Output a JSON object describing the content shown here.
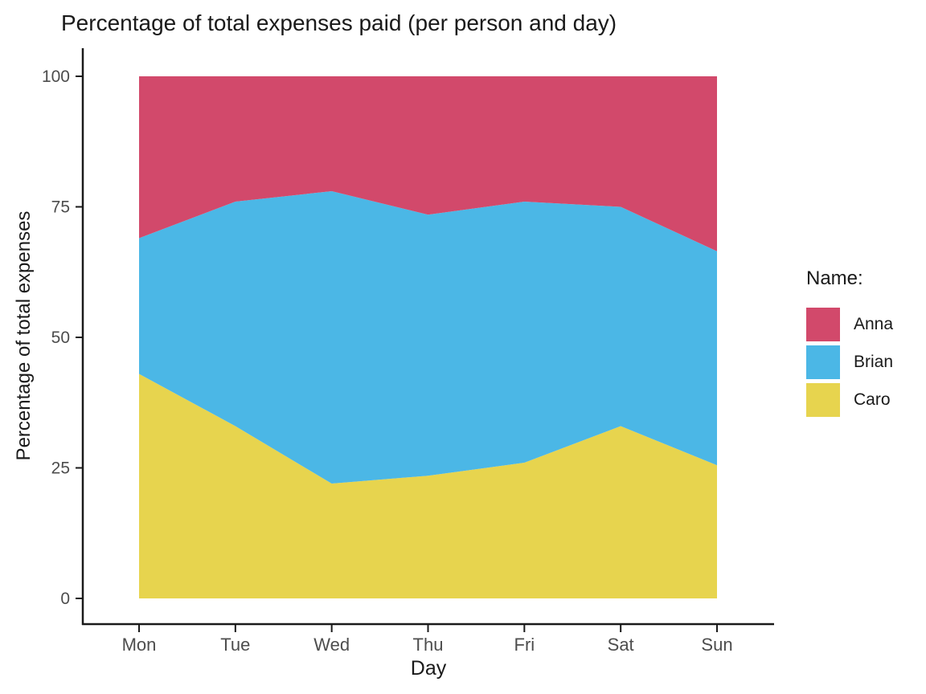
{
  "chart_data": {
    "type": "area",
    "stacked": true,
    "title": "Percentage of total expenses paid (per person and day)",
    "xlabel": "Day",
    "ylabel": "Percentage of total expenses",
    "legend_title": "Name:",
    "legend_position": "right",
    "categories": [
      "Mon",
      "Tue",
      "Wed",
      "Thu",
      "Fri",
      "Sat",
      "Sun"
    ],
    "y_ticks": [
      0,
      25,
      50,
      75,
      100
    ],
    "ylim": [
      0,
      100
    ],
    "series": [
      {
        "name": "Anna",
        "color": "#d2496b",
        "values": [
          31,
          24,
          22,
          26.5,
          24,
          25,
          33.5
        ]
      },
      {
        "name": "Brian",
        "color": "#4bb7e6",
        "values": [
          26,
          43,
          56,
          50,
          50,
          42,
          41
        ]
      },
      {
        "name": "Caro",
        "color": "#e7d44e",
        "values": [
          43,
          33,
          22,
          23.5,
          26,
          33,
          25.5
        ]
      }
    ],
    "stack_order_bottom_to_top": [
      "Caro",
      "Brian",
      "Anna"
    ],
    "axis_line_color": "#1a1a1a",
    "tick_label_color": "#4d4d4d",
    "grid": "off"
  }
}
